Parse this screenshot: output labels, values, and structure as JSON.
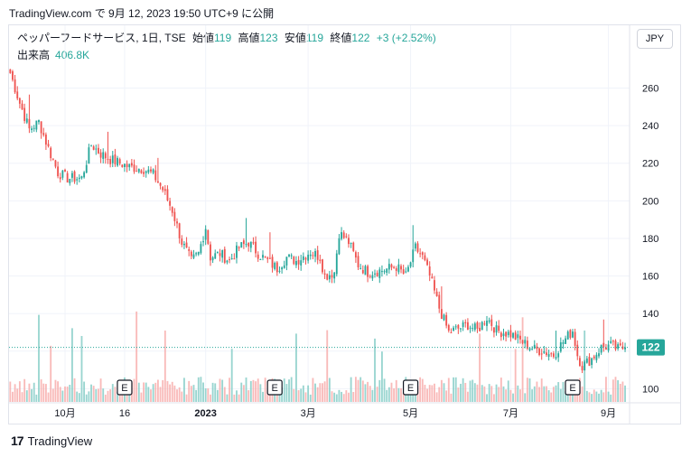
{
  "header": {
    "text": "TradingView.com で 9月 12, 2023 19:50 UTC+9 に公開"
  },
  "legend": {
    "symbol": "ペッパーフードサービス, 1日, TSE",
    "open_label": "始値",
    "open": "119",
    "high_label": "高値",
    "high": "123",
    "low_label": "安値",
    "low": "119",
    "close_label": "終値",
    "close": "122",
    "change": "+3 (+2.52%)"
  },
  "volume": {
    "label": "出来高",
    "value": "406.8K"
  },
  "currency": "JPY",
  "last_price_label": "122",
  "footer": {
    "brand": "TradingView",
    "logo": "17"
  },
  "colors": {
    "up": "#26a69a",
    "down": "#ef5350",
    "last": "#26a69a",
    "grid": "#f0f3fa"
  },
  "chart_data": {
    "type": "candlestick",
    "y_ticks": [
      100,
      120,
      140,
      160,
      180,
      200,
      220,
      240,
      260
    ],
    "y_tick_labels": [
      "100",
      "120",
      "140",
      "160",
      "180",
      "200",
      "220",
      "240",
      "260"
    ],
    "ylim": [
      93,
      278
    ],
    "x_ticks": [
      {
        "label": "10月",
        "i": 23
      },
      {
        "label": "16",
        "i": 48
      },
      {
        "label": "2023",
        "i": 82
      },
      {
        "label": "3月",
        "i": 125
      },
      {
        "label": "5月",
        "i": 168
      },
      {
        "label": "7月",
        "i": 210
      },
      {
        "label": "9月",
        "i": 251
      }
    ],
    "earnings_markers": [
      48,
      111,
      168,
      236
    ],
    "earnings_label": "E",
    "last_price": 122,
    "anchors": [
      [
        0,
        268
      ],
      [
        4,
        252
      ],
      [
        8,
        238
      ],
      [
        12,
        242
      ],
      [
        16,
        228
      ],
      [
        20,
        215
      ],
      [
        24,
        212
      ],
      [
        30,
        212
      ],
      [
        34,
        230
      ],
      [
        38,
        225
      ],
      [
        42,
        222
      ],
      [
        46,
        220
      ],
      [
        50,
        218
      ],
      [
        56,
        217
      ],
      [
        60,
        214
      ],
      [
        64,
        206
      ],
      [
        68,
        195
      ],
      [
        72,
        178
      ],
      [
        76,
        168
      ],
      [
        79,
        172
      ],
      [
        82,
        186
      ],
      [
        84,
        170
      ],
      [
        88,
        172
      ],
      [
        92,
        168
      ],
      [
        96,
        175
      ],
      [
        100,
        178
      ],
      [
        104,
        172
      ],
      [
        108,
        168
      ],
      [
        112,
        164
      ],
      [
        116,
        170
      ],
      [
        120,
        168
      ],
      [
        126,
        173
      ],
      [
        130,
        170
      ],
      [
        132,
        160
      ],
      [
        136,
        162
      ],
      [
        138,
        183
      ],
      [
        142,
        178
      ],
      [
        146,
        166
      ],
      [
        150,
        162
      ],
      [
        156,
        163
      ],
      [
        162,
        165
      ],
      [
        166,
        160
      ],
      [
        170,
        175
      ],
      [
        173,
        170
      ],
      [
        176,
        160
      ],
      [
        180,
        143
      ],
      [
        184,
        130
      ],
      [
        188,
        132
      ],
      [
        192,
        134
      ],
      [
        196,
        131
      ],
      [
        200,
        138
      ],
      [
        204,
        131
      ],
      [
        210,
        129
      ],
      [
        216,
        124
      ],
      [
        220,
        121
      ],
      [
        224,
        120
      ],
      [
        228,
        118
      ],
      [
        232,
        125
      ],
      [
        236,
        131
      ],
      [
        238,
        118
      ],
      [
        240,
        112
      ],
      [
        244,
        116
      ],
      [
        248,
        122
      ],
      [
        252,
        123
      ],
      [
        255,
        121
      ],
      [
        258,
        122
      ]
    ],
    "volume_scale_max": 100
  }
}
